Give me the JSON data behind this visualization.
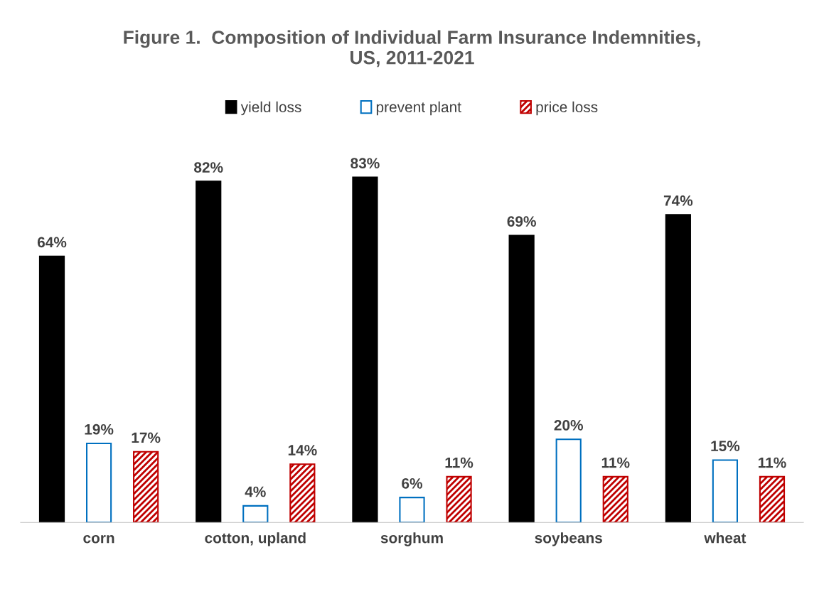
{
  "chart_data": {
    "type": "bar",
    "title": "Figure 1.  Composition of Individual Farm Insurance Indemnities,\nUS, 2011-2021",
    "categories": [
      "corn",
      "cotton, upland",
      "sorghum",
      "soybeans",
      "wheat"
    ],
    "series": [
      {
        "name": "yield loss",
        "color": "#000000",
        "values": [
          64,
          82,
          83,
          69,
          74
        ],
        "value_labels": [
          "64%",
          "82%",
          "83%",
          "69%",
          "74%"
        ]
      },
      {
        "name": "prevent plant",
        "color": "#0070c0",
        "values": [
          19,
          4,
          6,
          20,
          15
        ],
        "value_labels": [
          "19%",
          "4%",
          "6%",
          "20%",
          "15%"
        ]
      },
      {
        "name": "price loss",
        "color": "#c00000",
        "values": [
          17,
          14,
          11,
          11,
          11
        ],
        "value_labels": [
          "17%",
          "14%",
          "11%",
          "11%",
          "11%"
        ]
      }
    ],
    "legend": "top",
    "grid": false
  }
}
